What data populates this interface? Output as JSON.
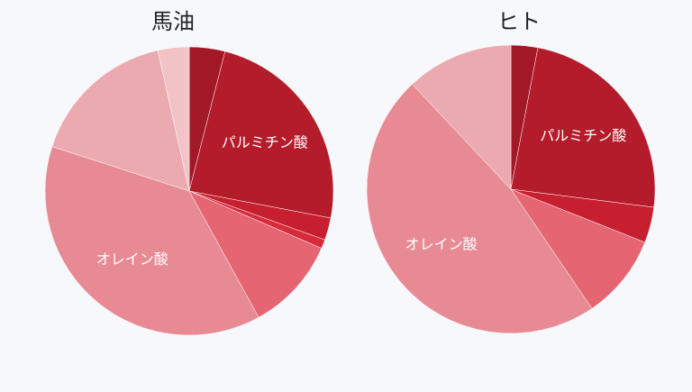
{
  "chart_data": [
    {
      "type": "pie",
      "title": "馬油",
      "start_angle_deg": 0,
      "direction": "clockwise",
      "slices": [
        {
          "value": 4,
          "color": "#a31827",
          "label": ""
        },
        {
          "value": 24,
          "color": "#b41c2b",
          "label": "パルミチン酸"
        },
        {
          "value": 2.5,
          "color": "#c71f2f",
          "label": ""
        },
        {
          "value": 1,
          "color": "#d92a3c",
          "label": ""
        },
        {
          "value": 10.5,
          "color": "#e56573",
          "label": ""
        },
        {
          "value": 38,
          "color": "#e78a94",
          "label": "オレイン酸"
        },
        {
          "value": 16.5,
          "color": "#ebaab0",
          "label": ""
        },
        {
          "value": 3.5,
          "color": "#f1c3c7",
          "label": ""
        }
      ]
    },
    {
      "type": "pie",
      "title": "ヒト",
      "start_angle_deg": 0,
      "direction": "clockwise",
      "slices": [
        {
          "value": 3,
          "color": "#a31827",
          "label": ""
        },
        {
          "value": 24,
          "color": "#b41c2b",
          "label": "パルミチン酸"
        },
        {
          "value": 4,
          "color": "#c71f2f",
          "label": ""
        },
        {
          "value": 9.5,
          "color": "#e56573",
          "label": ""
        },
        {
          "value": 47.5,
          "color": "#e78a94",
          "label": "オレイン酸"
        },
        {
          "value": 12,
          "color": "#ebaab0",
          "label": ""
        }
      ]
    }
  ]
}
